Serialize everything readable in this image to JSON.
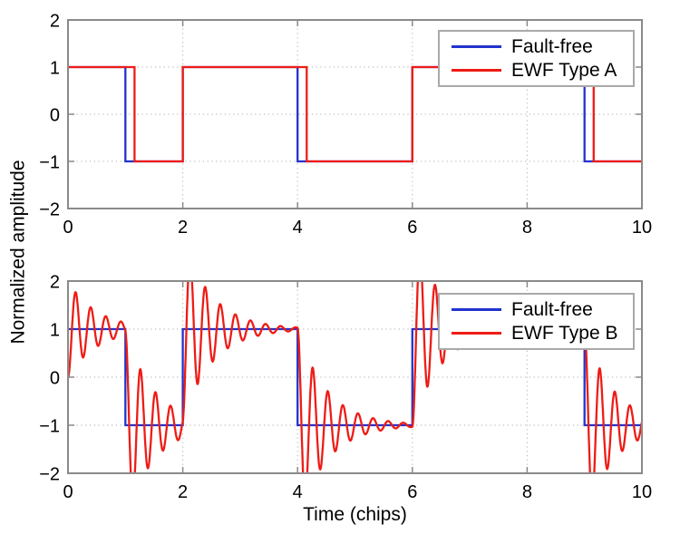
{
  "figure": {
    "xlabel": "Time (chips)",
    "ylabel": "Normalized amplitude",
    "background": "#ffffff"
  },
  "palette": {
    "fault_free": "#2233cc",
    "ewf": "#ee1c15",
    "axis": "#8a8a8a",
    "grid": "#bdbdbd",
    "text": "#000000",
    "legend_border": "#a9a9a9",
    "legend_bg": "#ffffff"
  },
  "chart_data": [
    {
      "id": "top",
      "type": "line",
      "title": "",
      "xlim": [
        0,
        10
      ],
      "ylim": [
        -2,
        2
      ],
      "xticks": [
        0,
        2,
        4,
        6,
        8,
        10
      ],
      "yticks": [
        -2,
        -1,
        0,
        1,
        2
      ],
      "grid": true,
      "legend": {
        "position": "upper-right",
        "entries": [
          {
            "label": "Fault-free",
            "color_key": "fault_free"
          },
          {
            "label": "EWF Type A",
            "color_key": "ewf"
          }
        ]
      },
      "series": [
        {
          "name": "Fault-free",
          "model": "square-wave",
          "color_key": "fault_free",
          "chip_values": [
            1,
            -1,
            1,
            1,
            -1,
            -1,
            1,
            1,
            1,
            -1
          ]
        },
        {
          "name": "EWF Type A",
          "model": "square-wave-delayed-falling-edges",
          "color_key": "ewf",
          "chip_values": [
            1,
            -1,
            1,
            1,
            -1,
            -1,
            1,
            1,
            1,
            -1
          ],
          "falling_edge_delay_chips": 0.16
        }
      ]
    },
    {
      "id": "bottom",
      "type": "line",
      "title": "",
      "xlim": [
        0,
        10
      ],
      "ylim": [
        -2,
        2
      ],
      "xticks": [
        0,
        2,
        4,
        6,
        8,
        10
      ],
      "yticks": [
        -2,
        -1,
        0,
        1,
        2
      ],
      "grid": true,
      "legend": {
        "position": "upper-right",
        "entries": [
          {
            "label": "Fault-free",
            "color_key": "fault_free"
          },
          {
            "label": "EWF Type B",
            "color_key": "ewf"
          }
        ]
      },
      "series": [
        {
          "name": "Fault-free",
          "model": "square-wave",
          "color_key": "fault_free",
          "chip_values": [
            1,
            -1,
            1,
            1,
            -1,
            -1,
            1,
            1,
            1,
            -1
          ]
        },
        {
          "name": "EWF Type B",
          "model": "second-order-ringing",
          "color_key": "ewf",
          "chip_values": [
            1,
            -1,
            1,
            1,
            -1,
            -1,
            1,
            1,
            1,
            -1
          ],
          "damping_nepers_per_chip": 2.0,
          "ring_freq_cycles_per_chip": 3.8,
          "initial_value": 0
        }
      ]
    }
  ]
}
